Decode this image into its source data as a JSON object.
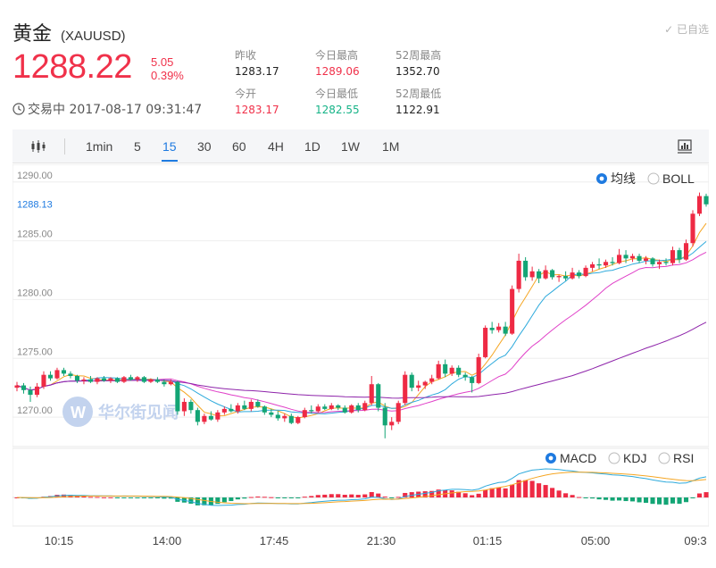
{
  "header": {
    "title": "黄金",
    "symbol": "(XAUUSD)",
    "watchlist": "✓ 已自选",
    "price": "1288.22",
    "change": "5.05",
    "change_pct": "0.39%",
    "status": "交易中 2017-08-17 09:31:47",
    "stats": [
      {
        "label": "昨收",
        "value": "1283.17",
        "tone": "normal"
      },
      {
        "label": "今日最高",
        "value": "1289.06",
        "tone": "red"
      },
      {
        "label": "52周最高",
        "value": "1352.70",
        "tone": "normal"
      },
      {
        "label": "今开",
        "value": "1283.17",
        "tone": "red"
      },
      {
        "label": "今日最低",
        "value": "1282.55",
        "tone": "green"
      },
      {
        "label": "52周最低",
        "value": "1122.91",
        "tone": "normal"
      }
    ]
  },
  "toolbar": {
    "icon_left": "candlestick-icon",
    "icon_right": "chart-settings-icon",
    "periods": [
      "1min",
      "5",
      "15",
      "30",
      "60",
      "4H",
      "1D",
      "1W",
      "1M"
    ],
    "active": "15"
  },
  "chart_data": {
    "type": "candlestick",
    "y_ticks": [
      "1290.00",
      "1285.00",
      "1280.00",
      "1275.00",
      "1270.00"
    ],
    "ylim": [
      1267.5,
      1291.5
    ],
    "current_label": "1288.13",
    "x_ticks": [
      "10:15",
      "14:00",
      "17:45",
      "21:30",
      "01:15",
      "05:00",
      "09:3"
    ],
    "indicator_options": [
      {
        "label": "均线",
        "selected": true
      },
      {
        "label": "BOLL",
        "selected": false
      }
    ],
    "sub_options": [
      {
        "label": "MACD",
        "selected": true
      },
      {
        "label": "KDJ",
        "selected": false
      },
      {
        "label": "RSI",
        "selected": false
      }
    ],
    "watermark": "华尔街见闻",
    "colors": {
      "up": "#ee2a44",
      "down": "#13a575",
      "ma_fast": "#f5a623",
      "ma_mid": "#2eaadc",
      "ma_slow": "#e040c8",
      "ma_long": "#8e24aa",
      "accent": "#1e7ae0"
    },
    "candles": [
      [
        1272.5,
        1273.0,
        1272.2,
        1272.7
      ],
      [
        1272.7,
        1272.9,
        1272.0,
        1272.3
      ],
      [
        1272.3,
        1272.6,
        1271.3,
        1271.9
      ],
      [
        1271.9,
        1272.9,
        1271.7,
        1272.6
      ],
      [
        1272.6,
        1273.9,
        1272.4,
        1273.6
      ],
      [
        1273.6,
        1273.9,
        1273.1,
        1273.3
      ],
      [
        1273.3,
        1274.2,
        1273.2,
        1274.0
      ],
      [
        1274.0,
        1274.2,
        1273.5,
        1273.7
      ],
      [
        1273.7,
        1273.9,
        1273.3,
        1273.5
      ],
      [
        1273.5,
        1273.6,
        1272.9,
        1273.1
      ],
      [
        1273.1,
        1273.4,
        1272.8,
        1273.2
      ],
      [
        1273.2,
        1273.5,
        1272.9,
        1273.0
      ],
      [
        1273.0,
        1273.4,
        1272.8,
        1273.3
      ],
      [
        1273.3,
        1273.5,
        1273.0,
        1273.1
      ],
      [
        1273.1,
        1273.4,
        1272.9,
        1273.3
      ],
      [
        1273.3,
        1273.4,
        1272.9,
        1273.0
      ],
      [
        1273.0,
        1273.5,
        1272.9,
        1273.4
      ],
      [
        1273.4,
        1273.6,
        1273.1,
        1273.2
      ],
      [
        1273.2,
        1273.5,
        1273.0,
        1273.4
      ],
      [
        1273.4,
        1273.5,
        1272.9,
        1273.0
      ],
      [
        1273.0,
        1273.3,
        1272.9,
        1273.2
      ],
      [
        1273.2,
        1273.4,
        1272.9,
        1273.0
      ],
      [
        1273.0,
        1273.2,
        1272.6,
        1272.8
      ],
      [
        1272.8,
        1273.2,
        1272.7,
        1273.0
      ],
      [
        1273.0,
        1273.1,
        1270.2,
        1270.5
      ],
      [
        1270.5,
        1271.6,
        1270.1,
        1271.3
      ],
      [
        1271.3,
        1271.5,
        1270.3,
        1270.6
      ],
      [
        1270.6,
        1270.8,
        1269.3,
        1269.6
      ],
      [
        1269.6,
        1270.3,
        1269.4,
        1270.1
      ],
      [
        1270.1,
        1270.5,
        1269.7,
        1269.8
      ],
      [
        1269.8,
        1270.6,
        1269.6,
        1270.4
      ],
      [
        1270.4,
        1270.9,
        1270.2,
        1270.7
      ],
      [
        1270.7,
        1271.1,
        1270.4,
        1270.5
      ],
      [
        1270.5,
        1271.2,
        1270.3,
        1271.0
      ],
      [
        1271.0,
        1271.4,
        1270.6,
        1270.7
      ],
      [
        1270.7,
        1271.5,
        1270.5,
        1271.3
      ],
      [
        1271.3,
        1271.5,
        1270.8,
        1270.9
      ],
      [
        1270.9,
        1271.0,
        1270.2,
        1270.4
      ],
      [
        1270.4,
        1270.7,
        1270.0,
        1270.2
      ],
      [
        1270.2,
        1270.5,
        1269.7,
        1269.9
      ],
      [
        1269.9,
        1270.3,
        1269.6,
        1270.1
      ],
      [
        1270.1,
        1270.3,
        1269.4,
        1269.5
      ],
      [
        1269.5,
        1270.1,
        1269.4,
        1270.0
      ],
      [
        1270.0,
        1270.8,
        1269.9,
        1270.6
      ],
      [
        1270.6,
        1271.0,
        1270.3,
        1270.5
      ],
      [
        1270.5,
        1271.1,
        1270.4,
        1270.9
      ],
      [
        1270.9,
        1271.1,
        1270.6,
        1270.7
      ],
      [
        1270.7,
        1271.2,
        1270.6,
        1271.0
      ],
      [
        1271.0,
        1271.1,
        1270.6,
        1270.8
      ],
      [
        1270.8,
        1271.0,
        1270.3,
        1270.4
      ],
      [
        1270.4,
        1271.1,
        1270.3,
        1271.0
      ],
      [
        1271.0,
        1271.2,
        1270.4,
        1270.6
      ],
      [
        1270.6,
        1271.4,
        1270.5,
        1271.2
      ],
      [
        1271.2,
        1273.5,
        1271.0,
        1272.8
      ],
      [
        1272.8,
        1272.9,
        1270.5,
        1270.8
      ],
      [
        1270.8,
        1271.2,
        1268.2,
        1269.3
      ],
      [
        1269.3,
        1270.0,
        1268.9,
        1269.6
      ],
      [
        1269.6,
        1271.4,
        1269.4,
        1271.2
      ],
      [
        1271.2,
        1273.9,
        1271.0,
        1273.6
      ],
      [
        1273.6,
        1273.8,
        1272.2,
        1272.5
      ],
      [
        1272.5,
        1273.1,
        1272.2,
        1272.7
      ],
      [
        1272.7,
        1273.1,
        1272.4,
        1273.0
      ],
      [
        1273.0,
        1273.6,
        1272.8,
        1273.3
      ],
      [
        1273.3,
        1274.8,
        1273.2,
        1274.5
      ],
      [
        1274.5,
        1274.9,
        1273.4,
        1273.7
      ],
      [
        1273.7,
        1274.4,
        1273.5,
        1274.2
      ],
      [
        1274.2,
        1274.4,
        1273.4,
        1273.6
      ],
      [
        1273.6,
        1273.8,
        1273.1,
        1273.4
      ],
      [
        1273.4,
        1273.5,
        1272.1,
        1272.9
      ],
      [
        1272.9,
        1275.4,
        1272.8,
        1275.1
      ],
      [
        1275.1,
        1277.8,
        1275.0,
        1277.6
      ],
      [
        1277.6,
        1278.1,
        1277.1,
        1277.4
      ],
      [
        1277.4,
        1278.0,
        1277.2,
        1277.7
      ],
      [
        1277.7,
        1278.1,
        1276.9,
        1277.1
      ],
      [
        1277.1,
        1281.2,
        1277.0,
        1280.9
      ],
      [
        1280.9,
        1283.9,
        1280.6,
        1283.3
      ],
      [
        1283.3,
        1283.6,
        1281.6,
        1281.9
      ],
      [
        1281.9,
        1282.8,
        1281.6,
        1282.4
      ],
      [
        1282.4,
        1282.6,
        1281.4,
        1281.8
      ],
      [
        1281.8,
        1282.9,
        1281.7,
        1282.5
      ],
      [
        1282.5,
        1282.6,
        1281.7,
        1281.9
      ],
      [
        1281.9,
        1282.1,
        1281.5,
        1282.0
      ],
      [
        1282.0,
        1282.4,
        1281.6,
        1281.8
      ],
      [
        1281.8,
        1282.7,
        1281.7,
        1282.3
      ],
      [
        1282.3,
        1282.5,
        1281.8,
        1282.0
      ],
      [
        1282.0,
        1282.9,
        1281.9,
        1282.7
      ],
      [
        1282.7,
        1283.2,
        1282.4,
        1283.0
      ],
      [
        1283.0,
        1283.5,
        1282.6,
        1282.9
      ],
      [
        1282.9,
        1283.4,
        1282.7,
        1283.2
      ],
      [
        1283.2,
        1283.6,
        1282.9,
        1283.1
      ],
      [
        1283.1,
        1284.3,
        1283.0,
        1283.8
      ],
      [
        1283.8,
        1284.2,
        1283.1,
        1283.5
      ],
      [
        1283.5,
        1283.9,
        1283.2,
        1283.7
      ],
      [
        1283.7,
        1283.9,
        1283.1,
        1283.3
      ],
      [
        1283.3,
        1283.7,
        1283.0,
        1283.5
      ],
      [
        1283.5,
        1283.6,
        1282.8,
        1283.0
      ],
      [
        1283.0,
        1283.4,
        1282.6,
        1283.2
      ],
      [
        1283.2,
        1283.5,
        1282.9,
        1283.1
      ],
      [
        1283.1,
        1284.5,
        1282.9,
        1284.2
      ],
      [
        1284.2,
        1284.4,
        1283.1,
        1283.4
      ],
      [
        1283.4,
        1285.1,
        1283.3,
        1284.8
      ],
      [
        1284.8,
        1287.6,
        1284.5,
        1287.3
      ],
      [
        1287.3,
        1289.1,
        1287.1,
        1288.8
      ],
      [
        1288.8,
        1289.0,
        1287.9,
        1288.1
      ]
    ]
  }
}
